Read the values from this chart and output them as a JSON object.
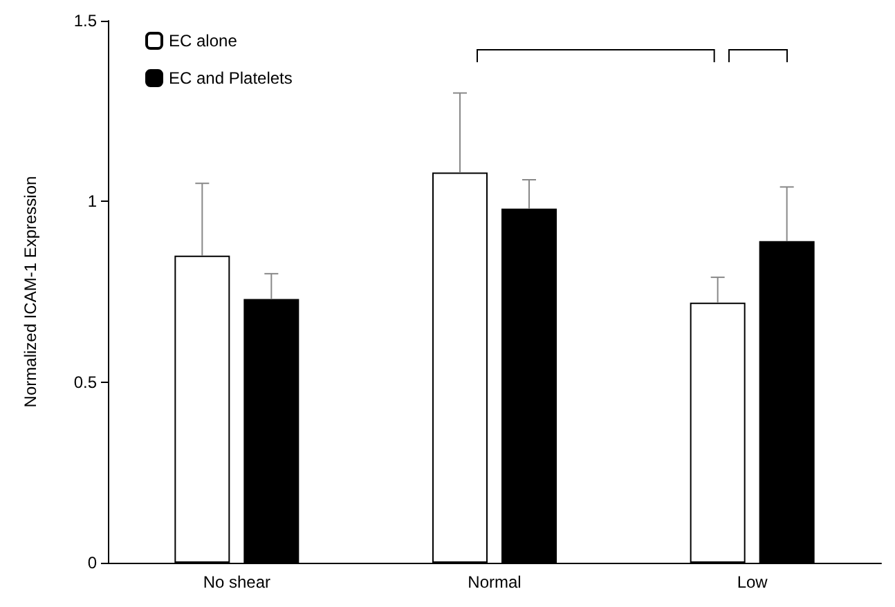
{
  "chart_data": {
    "type": "bar",
    "ylabel": "Normalized ICAM-1 Expression",
    "categories": [
      "No shear",
      "Normal",
      "Low"
    ],
    "series": [
      {
        "name": "EC alone",
        "color": "#ffffff",
        "values": [
          0.85,
          1.08,
          0.72
        ],
        "errors": [
          [
            0.85,
            1.05
          ],
          [
            1.08,
            1.3
          ],
          [
            0.72,
            0.79
          ]
        ]
      },
      {
        "name": "EC and Platelets",
        "color": "#000000",
        "values": [
          0.73,
          0.98,
          0.89
        ],
        "errors": [
          [
            0.73,
            0.8
          ],
          [
            0.98,
            1.06
          ],
          [
            0.89,
            1.04
          ]
        ]
      }
    ],
    "ylim": [
      0,
      1.5
    ],
    "yticks": [
      0,
      0.5,
      1,
      1.5
    ],
    "grid": false,
    "legend": "top left"
  }
}
